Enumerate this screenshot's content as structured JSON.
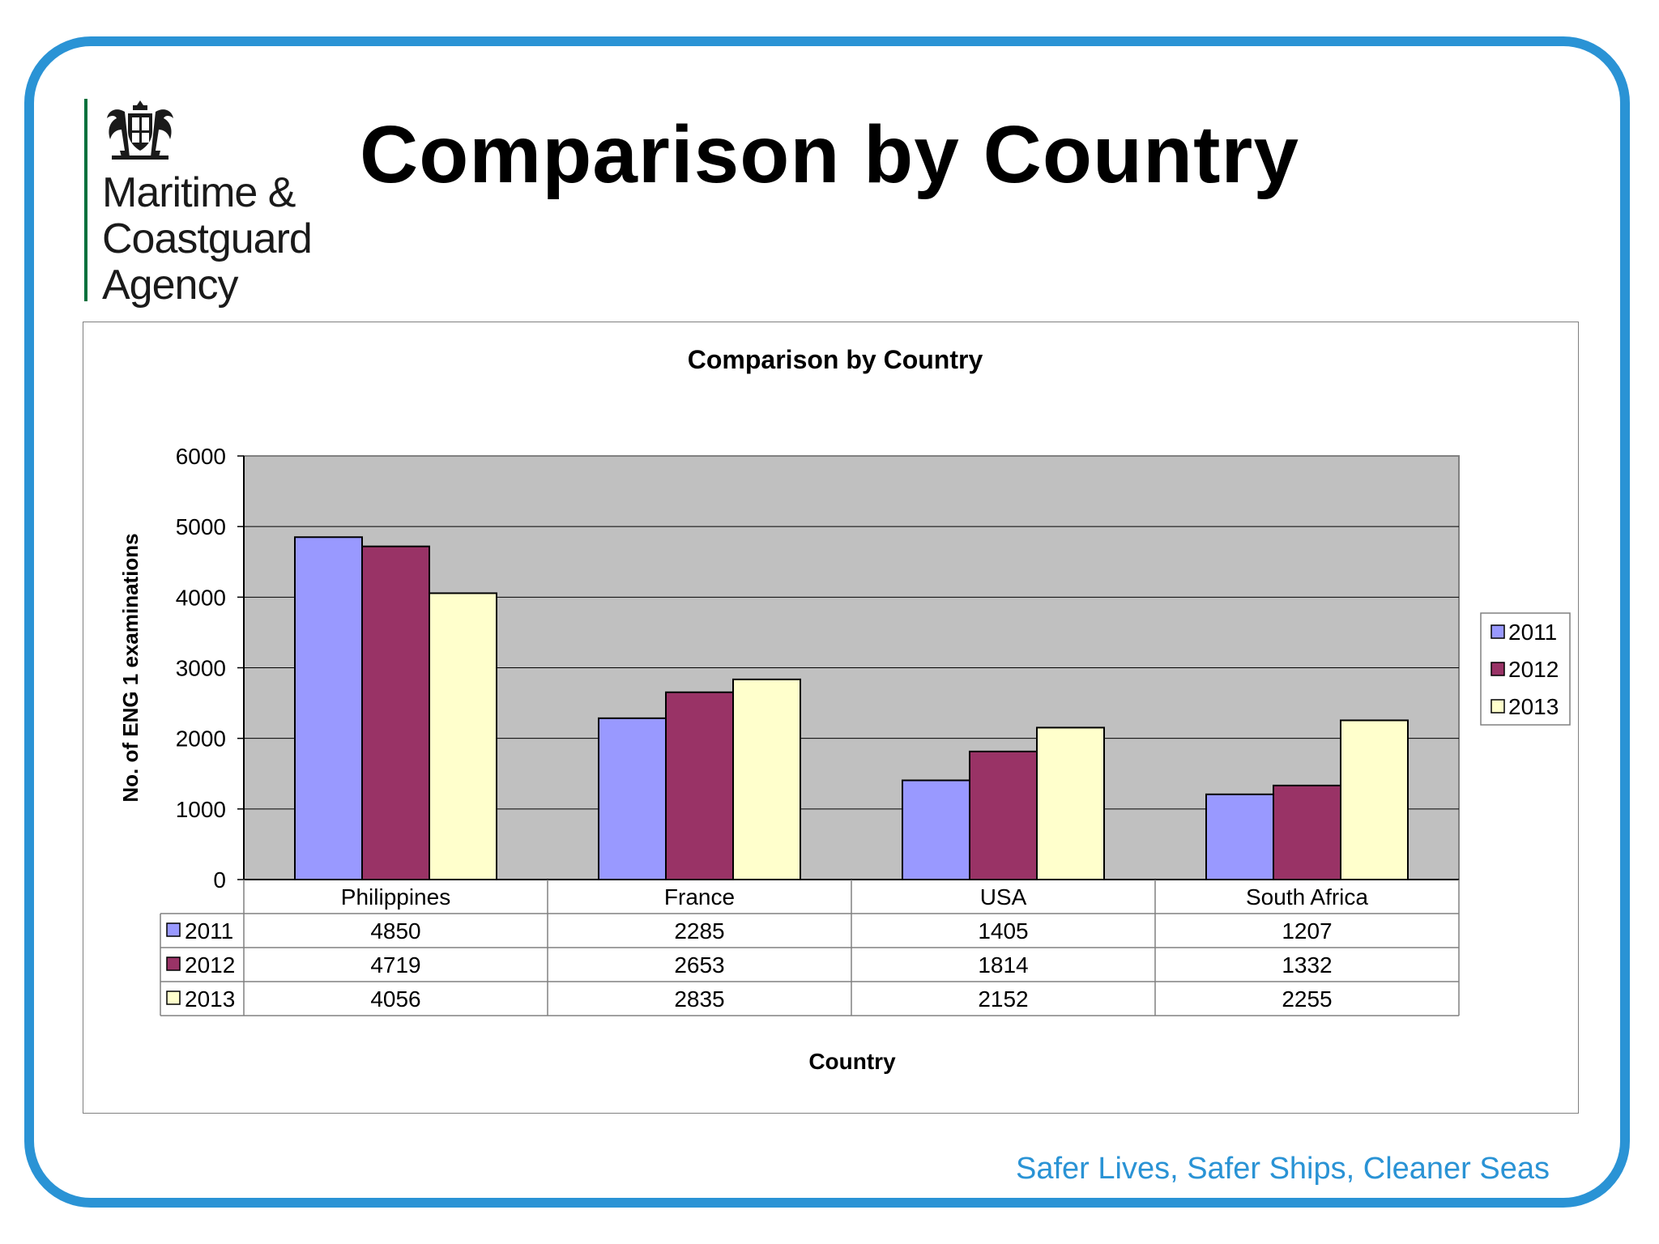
{
  "slide": {
    "title": "Comparison by Country",
    "org_name_lines": [
      "Maritime &",
      "Coastguard",
      "Agency"
    ],
    "tagline": "Safer Lives, Safer Ships, Cleaner Seas",
    "logo_icon": "royal-coat-of-arms-icon"
  },
  "chart_data": {
    "type": "bar",
    "title": "Comparison by Country",
    "xlabel": "Country",
    "ylabel": "No. of ENG 1 examinations",
    "ylim": [
      0,
      6000
    ],
    "yticks": [
      0,
      1000,
      2000,
      3000,
      4000,
      5000,
      6000
    ],
    "grid": true,
    "legend": "right",
    "data_table": true,
    "categories": [
      "Philippines",
      "France",
      "USA",
      "South Africa"
    ],
    "series": [
      {
        "name": "2011",
        "values": [
          4850,
          2285,
          1405,
          1207
        ],
        "color": "#9999ff"
      },
      {
        "name": "2012",
        "values": [
          4719,
          2653,
          1814,
          1332
        ],
        "color": "#993366"
      },
      {
        "name": "2013",
        "values": [
          4056,
          2835,
          2152,
          2255
        ],
        "color": "#ffffcc"
      }
    ],
    "plot_background": "#c0c0c0"
  }
}
